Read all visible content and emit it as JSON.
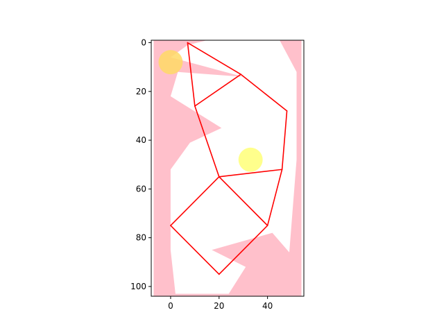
{
  "chart_data": {
    "type": "scatter",
    "title": "",
    "xlabel": "",
    "ylabel": "",
    "xlim": [
      -8,
      55
    ],
    "ylim": [
      104,
      -1
    ],
    "y_inverted": true,
    "grid": false,
    "x_ticks": [
      0,
      20,
      40
    ],
    "y_ticks": [
      0,
      20,
      40,
      60,
      80,
      100
    ],
    "colors": {
      "background_region": "#ffc0cb",
      "free_region": "#ffffff",
      "path": "#ff0000",
      "goal_circle": "#ffff80",
      "start_circle": "#ffd966"
    },
    "pink_region_extent": {
      "x": [
        -7,
        54
      ],
      "y": [
        -1,
        104
      ]
    },
    "free_region_outline": [
      [
        7,
        1
      ],
      [
        15,
        -1
      ],
      [
        45,
        -1
      ],
      [
        52,
        12
      ],
      [
        52,
        48
      ],
      [
        49,
        86
      ],
      [
        42,
        78
      ],
      [
        17,
        85
      ],
      [
        31,
        92
      ],
      [
        24,
        103
      ],
      [
        2,
        103
      ],
      [
        0,
        85
      ],
      [
        0,
        52
      ],
      [
        8,
        41
      ],
      [
        21,
        35
      ],
      [
        0,
        22
      ],
      [
        3,
        12
      ],
      [
        30,
        14
      ],
      [
        0,
        6
      ]
    ],
    "path_edges": [
      [
        [
          7,
          0
        ],
        [
          29,
          13
        ]
      ],
      [
        [
          29,
          13
        ],
        [
          10,
          26
        ]
      ],
      [
        [
          10,
          26
        ],
        [
          7,
          0
        ]
      ],
      [
        [
          29,
          13
        ],
        [
          48,
          28
        ]
      ],
      [
        [
          48,
          28
        ],
        [
          46,
          52
        ]
      ],
      [
        [
          46,
          52
        ],
        [
          20,
          55
        ]
      ],
      [
        [
          20,
          55
        ],
        [
          10,
          26
        ]
      ],
      [
        [
          46,
          52
        ],
        [
          40,
          75
        ]
      ],
      [
        [
          40,
          75
        ],
        [
          20,
          55
        ]
      ],
      [
        [
          20,
          55
        ],
        [
          0,
          75
        ]
      ],
      [
        [
          0,
          75
        ],
        [
          20,
          95
        ]
      ],
      [
        [
          20,
          95
        ],
        [
          40,
          75
        ]
      ]
    ],
    "circles": [
      {
        "name": "start",
        "x": 0,
        "y": 8,
        "r": 5
      },
      {
        "name": "goal",
        "x": 33,
        "y": 48,
        "r": 5
      }
    ]
  }
}
